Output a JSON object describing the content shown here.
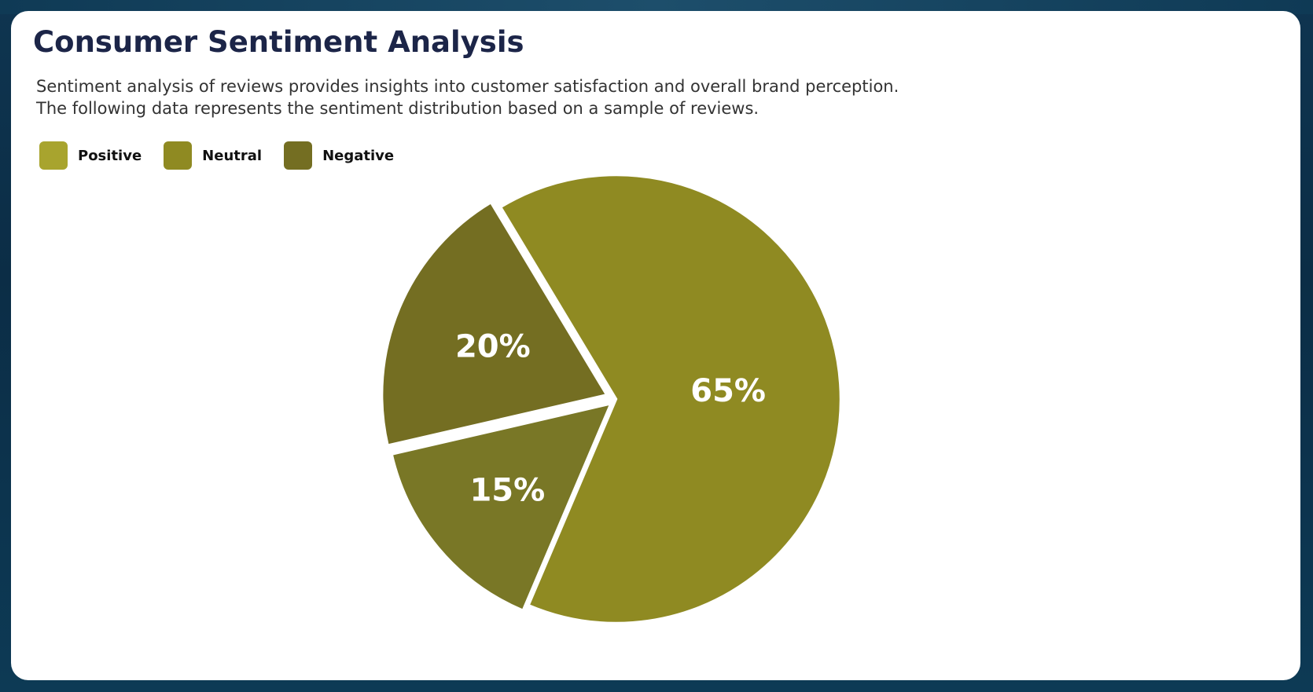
{
  "page": {
    "title": "Consumer Sentiment Analysis",
    "description_lines": [
      "Sentiment analysis of reviews provides insights into customer satisfaction and overall brand perception.",
      "The following data represents the sentiment distribution based on a sample of reviews."
    ]
  },
  "legend": [
    {
      "label": "Positive",
      "color": "#a8a42e"
    },
    {
      "label": "Neutral",
      "color": "#8f8a22"
    },
    {
      "label": "Negative",
      "color": "#746e22"
    }
  ],
  "chart_data": {
    "type": "pie",
    "categories": [
      "Positive",
      "Neutral",
      "Negative"
    ],
    "values": [
      65,
      15,
      20
    ],
    "labels": [
      "65%",
      "15%",
      "20%"
    ],
    "colors": [
      "#8f8a22",
      "#797726",
      "#746e22"
    ],
    "title": "",
    "legend_position": "top-left"
  }
}
